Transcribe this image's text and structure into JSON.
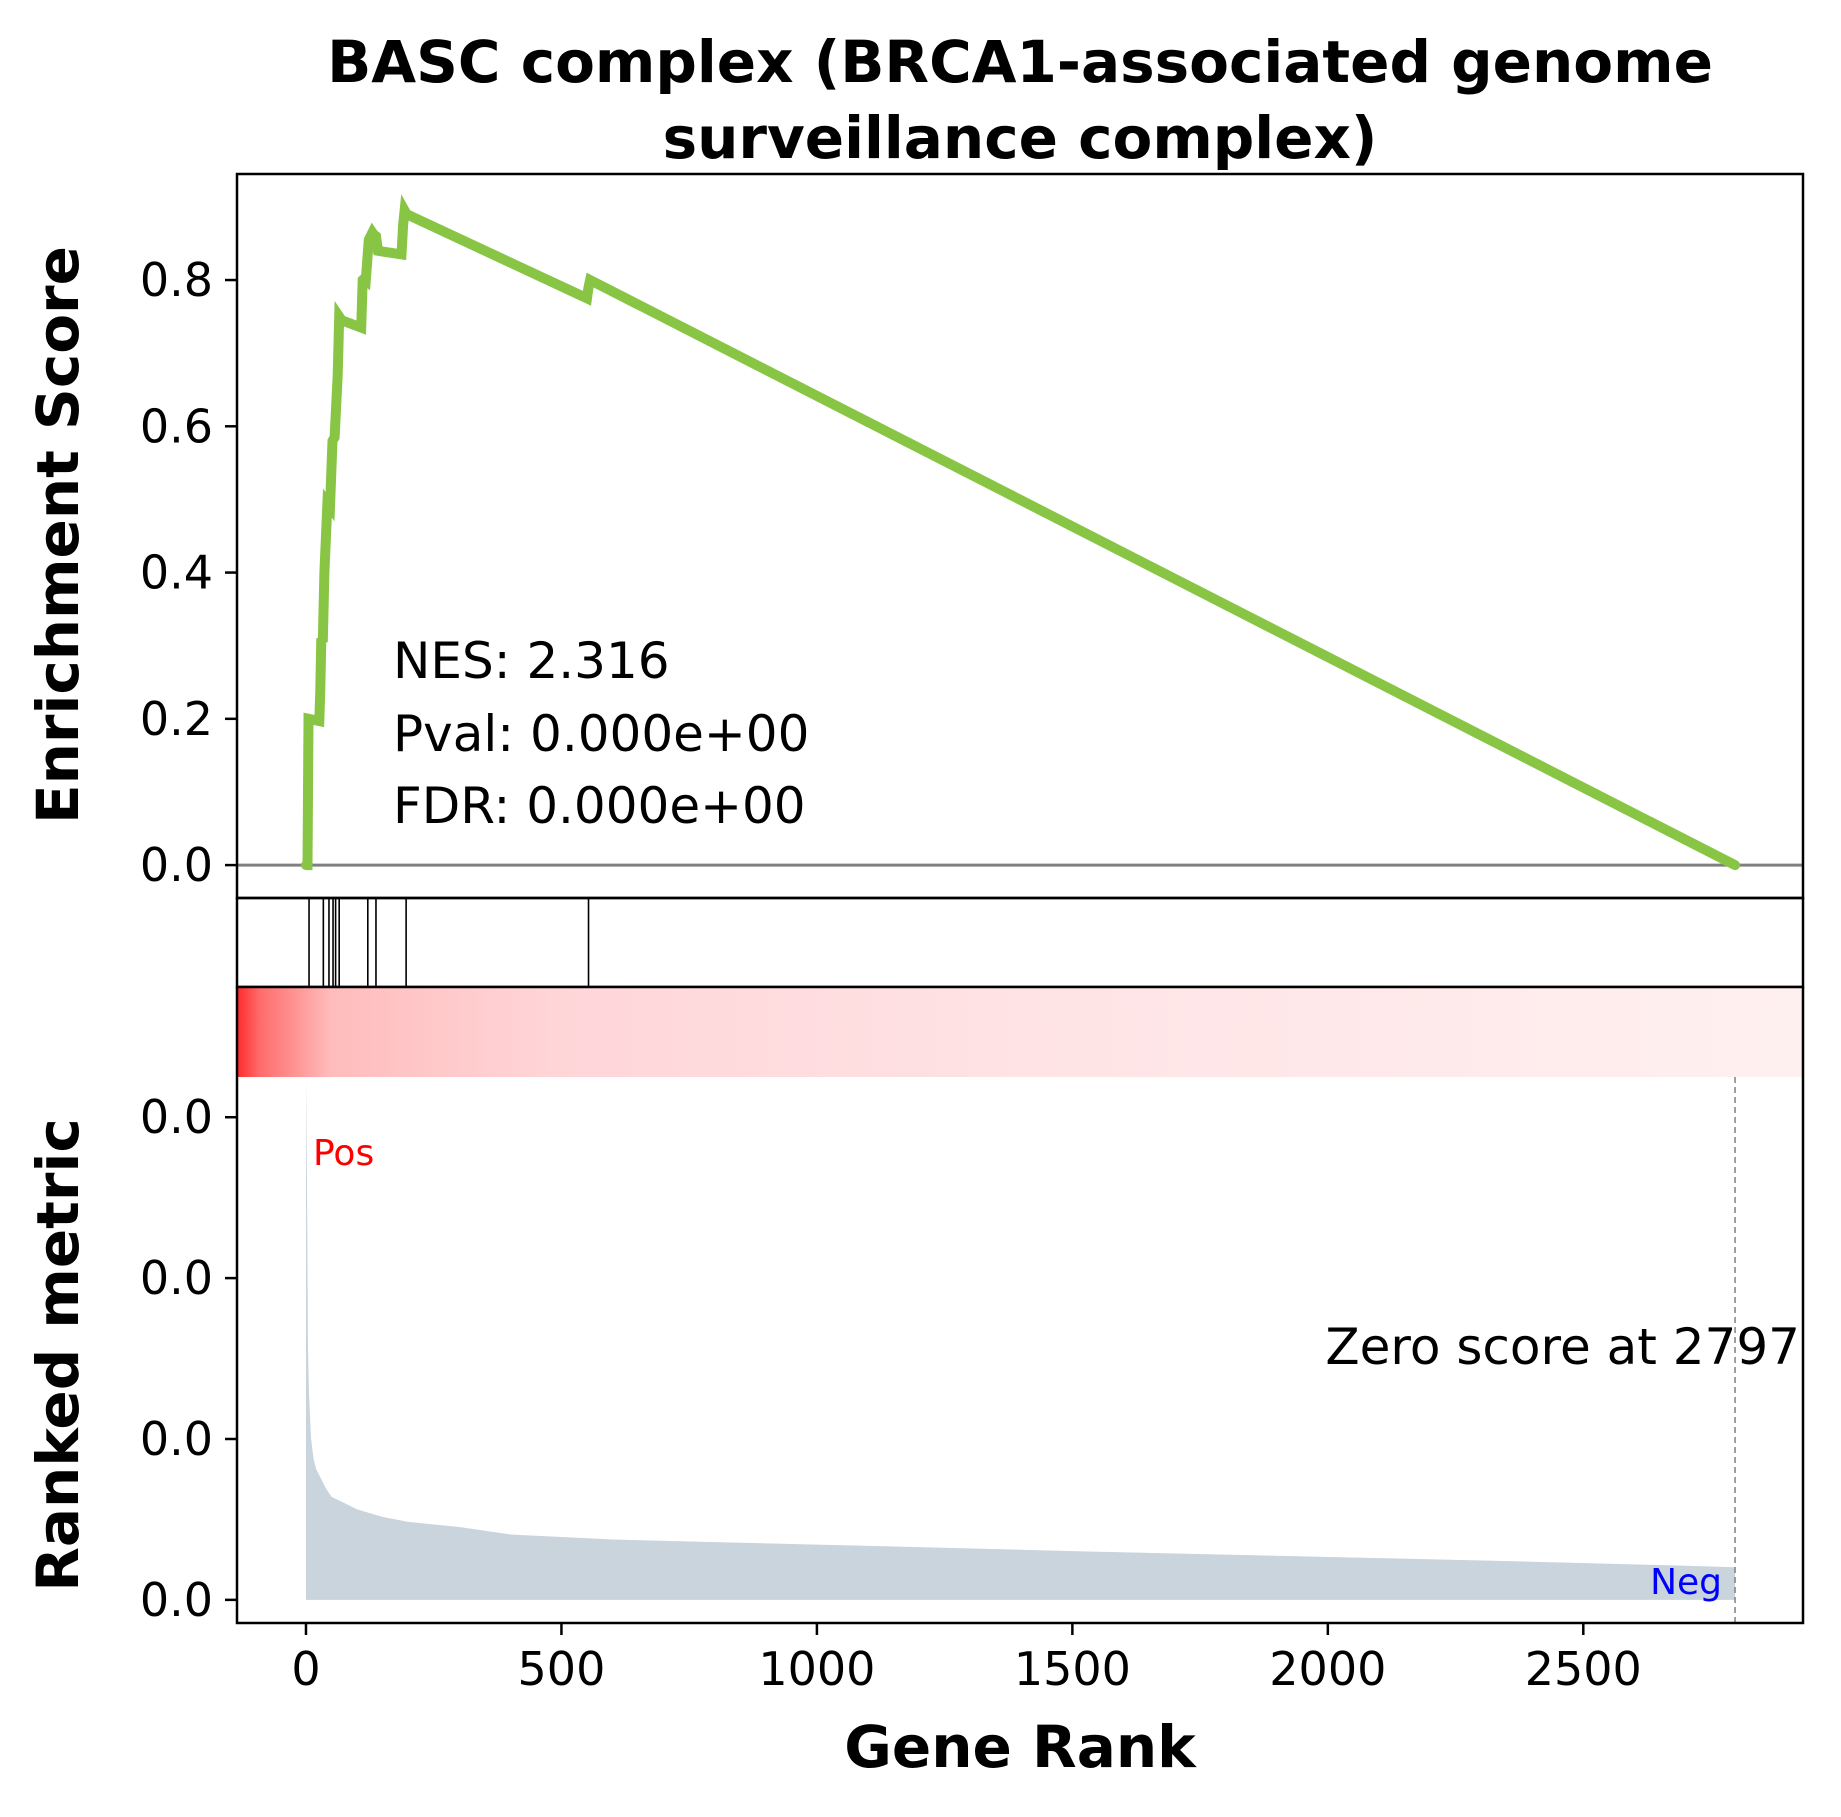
{
  "chart_data": {
    "type": "line",
    "title_lines": [
      "BASC complex (BRCA1-associated genome",
      "surveillance complex)"
    ],
    "colors": {
      "es_line": "#88c544",
      "baseline": "#808080",
      "ranked_fill": "#c9d4dd",
      "heat_high": "#ff2a2a",
      "heat_low": "#fff0f0",
      "pos_label": "#ff0000",
      "neg_label": "#0000ff"
    },
    "top_panel": {
      "ylabel": "Enrichment Score",
      "ylim": [
        -0.045,
        0.945
      ],
      "yticks": [
        0.0,
        0.2,
        0.4,
        0.6,
        0.8
      ],
      "ytick_labels": [
        "0.0",
        "0.2",
        "0.4",
        "0.6",
        "0.8"
      ],
      "annotation_lines": [
        "NES: 2.316",
        "Pval: 0.000e+00",
        "FDR: 0.000e+00"
      ],
      "x": [
        0,
        3,
        5,
        26,
        28,
        30,
        33,
        36,
        42,
        47,
        52,
        56,
        62,
        65,
        70,
        108,
        111,
        114,
        117,
        123,
        130,
        133,
        137,
        141,
        187,
        190,
        193,
        197,
        550,
        553,
        556,
        2797
      ],
      "y": [
        0.0,
        0.0,
        0.2,
        0.197,
        0.24,
        0.31,
        0.305,
        0.4,
        0.495,
        0.49,
        0.58,
        0.585,
        0.67,
        0.75,
        0.745,
        0.735,
        0.8,
        0.802,
        0.8,
        0.855,
        0.865,
        0.862,
        0.86,
        0.84,
        0.835,
        0.875,
        0.895,
        0.89,
        0.775,
        0.79,
        0.8,
        0.0
      ]
    },
    "hits": [
      6,
      34,
      45,
      53,
      58,
      65,
      121,
      137,
      196,
      553
    ],
    "bottom_panel": {
      "xlabel": "Gene Rank",
      "ylabel": "Ranked metric",
      "xlim": [
        -135,
        2930
      ],
      "xticks": [
        0,
        500,
        1000,
        1500,
        2000,
        2500
      ],
      "xtick_labels": [
        "0",
        "500",
        "1000",
        "1500",
        "2000",
        "2500"
      ],
      "ylim": [
        -0.0046,
        0.104
      ],
      "yticks": [
        0.0,
        0.032,
        0.064,
        0.096
      ],
      "ytick_labels": [
        "0.0",
        "0.0",
        "0.0",
        "0.0"
      ],
      "pos_label": "Pos",
      "neg_label": "Neg",
      "zero_score_text": "Zero score at 2797",
      "zero_score_rank": 2797,
      "metric_x": [
        0,
        2,
        4,
        6,
        8,
        10,
        15,
        20,
        30,
        40,
        50,
        70,
        100,
        150,
        200,
        300,
        400,
        500,
        600,
        800,
        1000,
        1200,
        1500,
        1800,
        2100,
        2400,
        2700,
        2797
      ],
      "metric_y": [
        0.104,
        0.083,
        0.05,
        0.041,
        0.036,
        0.032,
        0.028,
        0.026,
        0.024,
        0.022,
        0.0205,
        0.0195,
        0.018,
        0.0165,
        0.0155,
        0.0145,
        0.013,
        0.0125,
        0.012,
        0.0115,
        0.011,
        0.0105,
        0.0097,
        0.009,
        0.0083,
        0.0076,
        0.0068,
        0.0065
      ]
    }
  }
}
